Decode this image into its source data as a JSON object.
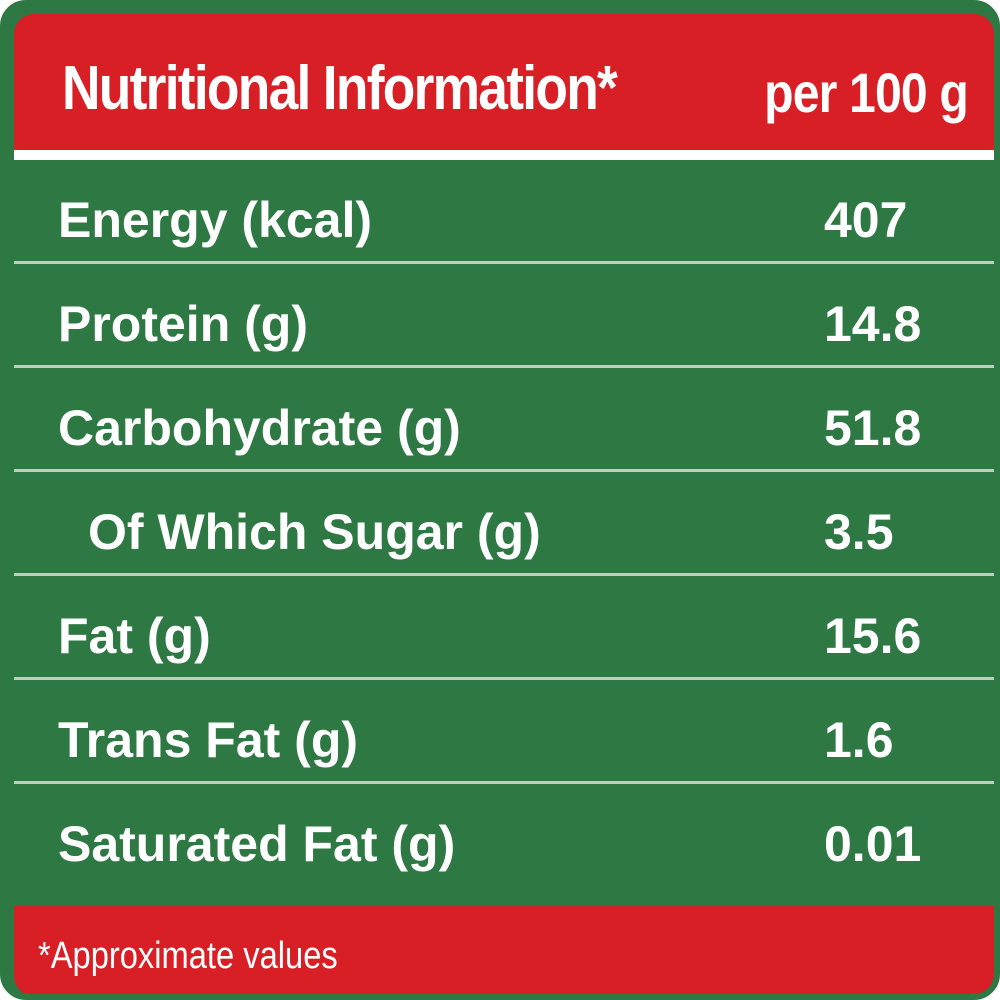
{
  "colors": {
    "header_red": "#d81f26",
    "table_green": "#2e7844",
    "text_white": "#ffffff",
    "divider": "#b9d1bf"
  },
  "header": {
    "title": "Nutritional Information*",
    "per": "per 100 g"
  },
  "rows": [
    {
      "label": "Energy (kcal)",
      "value": "407"
    },
    {
      "label": "Protein (g)",
      "value": "14.8"
    },
    {
      "label": "Carbohydrate (g)",
      "value": "51.8"
    },
    {
      "label": "Of Which Sugar (g)",
      "value": "3.5"
    },
    {
      "label": "Fat (g)",
      "value": "15.6"
    },
    {
      "label": "Trans Fat (g)",
      "value": "1.6"
    },
    {
      "label": "Saturated Fat (g)",
      "value": "0.01"
    }
  ],
  "footer": {
    "note": "*Approximate values"
  }
}
